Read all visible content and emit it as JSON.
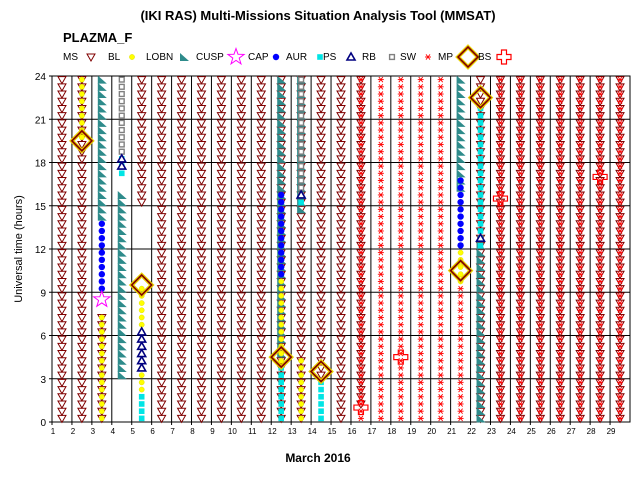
{
  "chart_data": {
    "type": "scatter",
    "title": "(IKI RAS) Multi-Missions Situation Analysis Tool (MMSAT)",
    "subtitle": "PLAZMA_F",
    "xlabel": "March 2016",
    "ylabel": "Universal time (hours)",
    "xlim": [
      1,
      30
    ],
    "ylim": [
      0,
      24
    ],
    "x_ticks": [
      "1",
      "2",
      "3",
      "4",
      "5",
      "6",
      "7",
      "8",
      "9",
      "10",
      "11",
      "12",
      "13",
      "14",
      "15",
      "16",
      "17",
      "18",
      "19",
      "20",
      "21",
      "22",
      "23",
      "24",
      "25",
      "26",
      "27",
      "28",
      "29"
    ],
    "y_ticks": [
      "0",
      "3",
      "6",
      "9",
      "12",
      "15",
      "18",
      "21",
      "24"
    ],
    "legend_placement": "top",
    "series": [
      {
        "name": "MS",
        "marker": "triangle-down",
        "color": "#800000",
        "segments": [
          [
            1.5,
            0,
            24
          ],
          [
            2.5,
            0,
            24
          ],
          [
            3.5,
            0,
            7.5
          ],
          [
            5.5,
            15,
            24
          ],
          [
            6.5,
            0,
            24
          ],
          [
            7.5,
            0,
            24
          ],
          [
            8.5,
            0,
            24
          ],
          [
            9.5,
            0,
            24
          ],
          [
            10.5,
            0,
            24
          ],
          [
            11.5,
            0,
            24
          ],
          [
            12.5,
            0,
            24
          ],
          [
            13.5,
            0,
            24
          ],
          [
            14.5,
            3,
            24
          ],
          [
            15.5,
            0,
            24
          ],
          [
            16.5,
            1,
            24
          ],
          [
            22.5,
            0,
            24
          ],
          [
            23.5,
            0,
            24
          ],
          [
            24.5,
            0,
            24
          ],
          [
            25.5,
            0,
            24
          ],
          [
            26.5,
            0,
            24
          ],
          [
            27.5,
            0,
            24
          ],
          [
            28.5,
            0,
            24
          ],
          [
            29.5,
            0,
            24
          ]
        ]
      },
      {
        "name": "BL",
        "marker": "circle-small",
        "color": "#ffff00",
        "segments": [
          [
            2.5,
            19.5,
            24
          ],
          [
            3.5,
            0,
            7.5
          ],
          [
            5.5,
            2,
            9.5
          ],
          [
            12.5,
            0,
            15
          ],
          [
            13.5,
            0,
            4.5
          ],
          [
            21.5,
            9.5,
            15
          ]
        ]
      },
      {
        "name": "LOBN",
        "marker": "triangle-flag",
        "color": "#2e8b8b",
        "segments": [
          [
            3.5,
            14,
            24
          ],
          [
            4.5,
            3,
            16
          ],
          [
            12.5,
            4.5,
            24
          ],
          [
            13.5,
            14.5,
            24
          ],
          [
            21.5,
            16,
            24
          ],
          [
            22.5,
            0,
            12.5
          ]
        ]
      },
      {
        "name": "CUSP",
        "marker": "star",
        "color": "#ff00ff",
        "segments": [
          [
            3.5,
            8.5,
            8.5
          ]
        ]
      },
      {
        "name": "CAP",
        "marker": "circle",
        "color": "#0000ff",
        "segments": [
          [
            3.5,
            9,
            14
          ],
          [
            12.5,
            10,
            16
          ],
          [
            21.5,
            12,
            17
          ]
        ]
      },
      {
        "name": "AUR",
        "marker": "square",
        "color": "#00e5e5",
        "segments": [
          [
            4.5,
            17,
            18.5
          ],
          [
            5.5,
            0,
            2
          ],
          [
            12.5,
            0,
            4
          ],
          [
            13.5,
            15,
            24
          ],
          [
            14.5,
            0,
            3
          ],
          [
            22.5,
            12,
            22
          ]
        ]
      },
      {
        "name": "PS",
        "marker": "triangle-up",
        "color": "#000080",
        "segments": [
          [
            4.5,
            17.5,
            18.5
          ],
          [
            5.5,
            3.5,
            6.5
          ],
          [
            13.5,
            15.5,
            16
          ],
          [
            22.5,
            12.5,
            13
          ]
        ]
      },
      {
        "name": "RB",
        "marker": "square-open",
        "color": "#808080",
        "segments": [
          [
            4.5,
            18.5,
            24
          ],
          [
            13.5,
            15.5,
            24
          ]
        ]
      },
      {
        "name": "SW",
        "marker": "asterisk",
        "color": "#ff0000",
        "segments": [
          [
            16.5,
            0,
            24
          ],
          [
            17.5,
            0,
            24
          ],
          [
            18.5,
            0,
            24
          ],
          [
            19.5,
            0,
            24
          ],
          [
            20.5,
            0,
            24
          ],
          [
            21.5,
            0,
            9.5
          ],
          [
            23.5,
            0,
            24
          ],
          [
            24.5,
            0,
            24
          ],
          [
            25.5,
            0,
            24
          ],
          [
            26.5,
            0,
            24
          ],
          [
            27.5,
            0,
            24
          ],
          [
            28.5,
            0,
            24
          ],
          [
            29.5,
            0,
            24
          ]
        ]
      },
      {
        "name": "MP",
        "marker": "diamond",
        "color": "#800000",
        "points": [
          [
            2.5,
            19.5
          ],
          [
            5.5,
            9.5
          ],
          [
            12.5,
            4.5
          ],
          [
            14.5,
            3.5
          ],
          [
            21.5,
            10.5
          ],
          [
            22.5,
            22.5
          ]
        ]
      },
      {
        "name": "BS",
        "marker": "cross",
        "color": "#ff0000",
        "points": [
          [
            16.5,
            1
          ],
          [
            18.5,
            4.5
          ],
          [
            23.5,
            15.5
          ],
          [
            28.5,
            17
          ]
        ]
      }
    ]
  }
}
